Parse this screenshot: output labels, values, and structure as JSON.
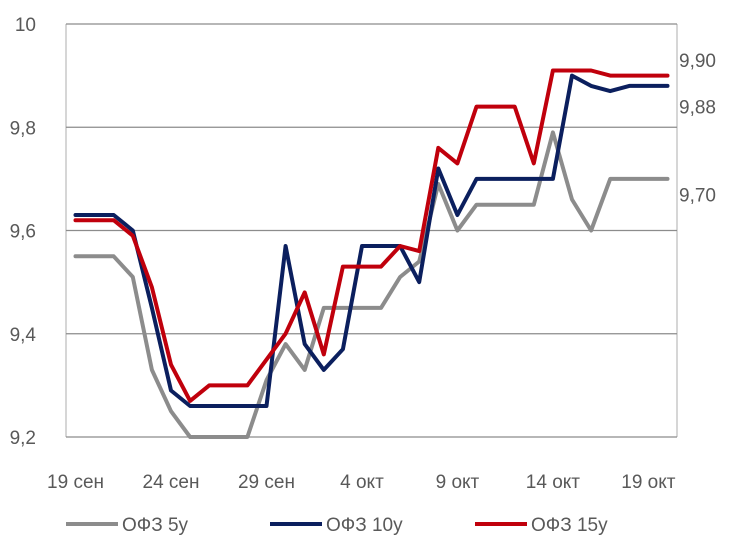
{
  "chart_data": {
    "type": "line",
    "title": "",
    "xlabel": "",
    "ylabel": "",
    "ylim": [
      9.2,
      10
    ],
    "y_ticks": [
      "9,2",
      "9,4",
      "9,6",
      "9,8",
      "10"
    ],
    "y_tick_values": [
      9.2,
      9.4,
      9.6,
      9.8,
      10.0
    ],
    "right_labels": [
      {
        "text": "9,90",
        "y": 9.93
      },
      {
        "text": "9,88",
        "y": 9.84
      },
      {
        "text": "9,70",
        "y": 9.67
      }
    ],
    "grid": true,
    "legend": "bottom",
    "x_ticks": [
      {
        "label": "19 сен",
        "i": 0
      },
      {
        "label": "24 сен",
        "i": 5
      },
      {
        "label": "29 сен",
        "i": 10
      },
      {
        "label": "4 окт",
        "i": 15
      },
      {
        "label": "9 окт",
        "i": 20
      },
      {
        "label": "14 окт",
        "i": 25
      },
      {
        "label": "19 окт",
        "i": 30
      }
    ],
    "x": [
      "19 сен",
      "20 сен",
      "21 сен",
      "22 сен",
      "23 сен",
      "24 сен",
      "25 сен",
      "26 сен",
      "27 сен",
      "28 сен",
      "29 сен",
      "30 сен",
      "1 окт",
      "2 окт",
      "3 окт",
      "4 окт",
      "5 окт",
      "6 окт",
      "7 окт",
      "8 окт",
      "9 окт",
      "10 окт",
      "11 окт",
      "12 окт",
      "13 окт",
      "14 окт",
      "15 окт",
      "16 окт",
      "17 окт",
      "18 окт",
      "19 окт",
      "20 окт"
    ],
    "series": [
      {
        "name": "ОФЗ 5у",
        "color": "#8c8c8c",
        "values": [
          9.55,
          9.55,
          9.55,
          9.51,
          9.33,
          9.25,
          9.2,
          9.2,
          9.2,
          9.2,
          9.31,
          9.38,
          9.33,
          9.45,
          9.45,
          9.45,
          9.45,
          9.51,
          9.54,
          9.69,
          9.6,
          9.65,
          9.65,
          9.65,
          9.65,
          9.79,
          9.66,
          9.6,
          9.7,
          9.7,
          9.7,
          9.7
        ]
      },
      {
        "name": "ОФЗ 10у",
        "color": "#0b1f5e",
        "values": [
          9.63,
          9.63,
          9.63,
          9.6,
          9.45,
          9.29,
          9.26,
          9.26,
          9.26,
          9.26,
          9.26,
          9.57,
          9.38,
          9.33,
          9.37,
          9.57,
          9.57,
          9.57,
          9.5,
          9.72,
          9.63,
          9.7,
          9.7,
          9.7,
          9.7,
          9.7,
          9.9,
          9.88,
          9.87,
          9.88,
          9.88,
          9.88
        ]
      },
      {
        "name": "ОФЗ 15у",
        "color": "#c0000c",
        "values": [
          9.62,
          9.62,
          9.62,
          9.59,
          9.49,
          9.34,
          9.27,
          9.3,
          9.3,
          9.3,
          9.35,
          9.4,
          9.48,
          9.36,
          9.53,
          9.53,
          9.53,
          9.57,
          9.56,
          9.76,
          9.73,
          9.84,
          9.84,
          9.84,
          9.73,
          9.91,
          9.91,
          9.91,
          9.9,
          9.9,
          9.9,
          9.9
        ]
      }
    ]
  }
}
